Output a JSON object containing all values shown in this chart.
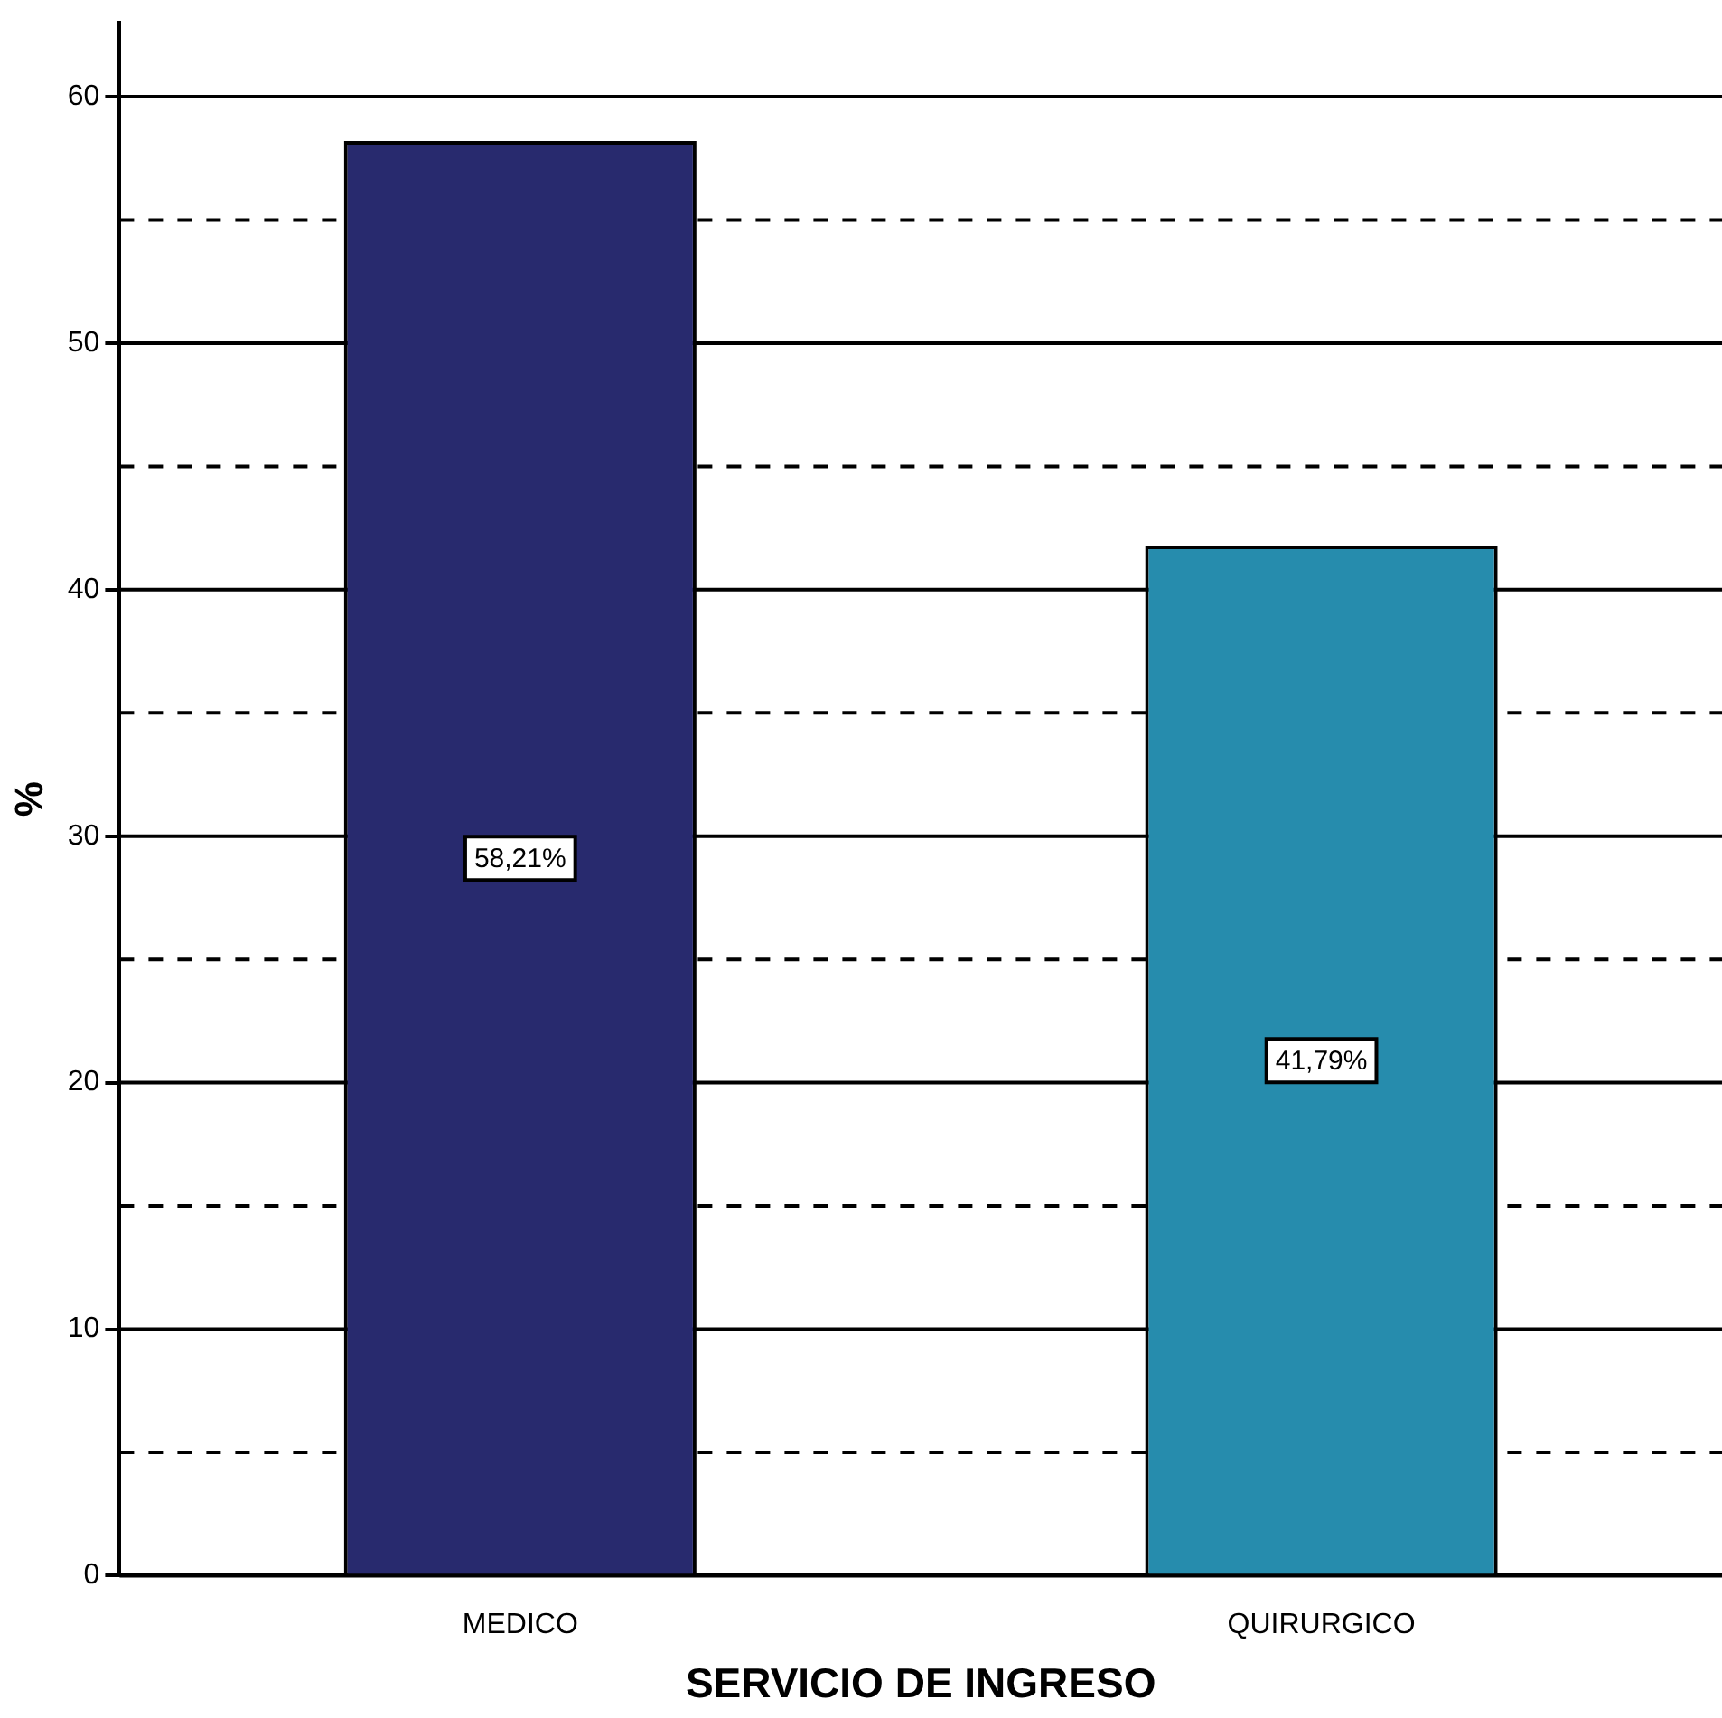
{
  "chart_data": {
    "type": "bar",
    "xlabel": "SERVICIO DE INGRESO",
    "ylabel": "%",
    "categories": [
      "MEDICO",
      "QUIRURGICO"
    ],
    "values": [
      58.21,
      41.79
    ],
    "colors": [
      "#282a6e",
      "#268cad"
    ],
    "value_labels": [
      "58,21%",
      "41,79%"
    ],
    "ylim": [
      0,
      63
    ],
    "yticks": [
      0,
      {
        "value": 5,
        "label": null
      },
      10,
      {
        "value": 15,
        "label": null
      },
      20,
      {
        "value": 25,
        "label": null
      },
      30,
      {
        "value": 35,
        "label": null
      },
      40,
      {
        "value": 45,
        "label": null
      },
      50,
      {
        "value": 55,
        "label": null
      },
      60
    ],
    "grid": "y",
    "legend": false
  }
}
